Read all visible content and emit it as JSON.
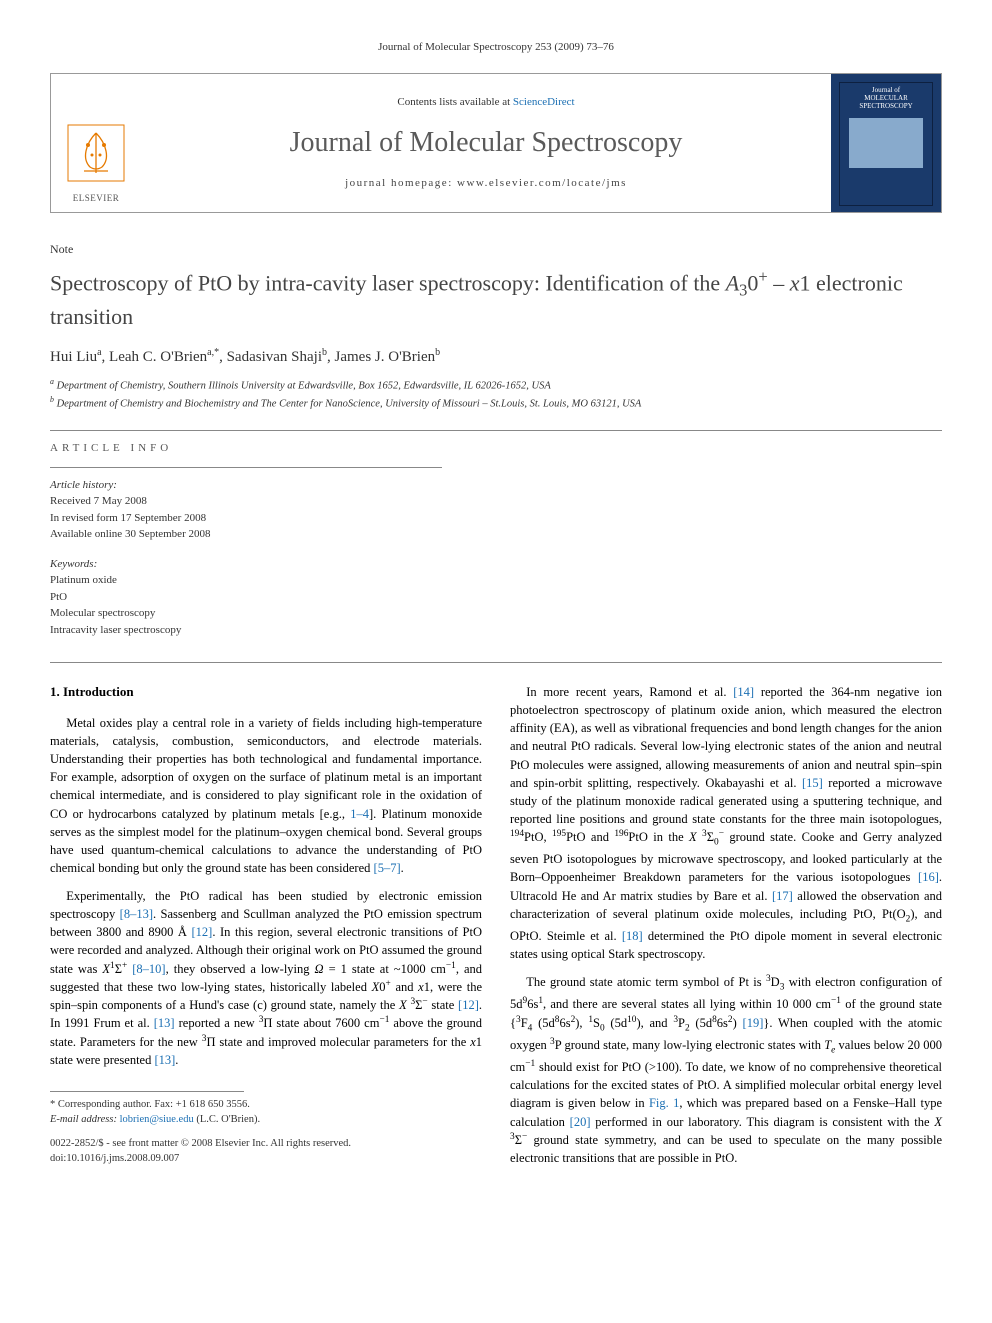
{
  "page_header": "Journal of Molecular Spectroscopy 253 (2009) 73–76",
  "banner": {
    "contents_prefix": "Contents lists available at ",
    "contents_link": "ScienceDirect",
    "journal_name": "Journal of Molecular Spectroscopy",
    "home_prefix": "journal homepage: ",
    "home_url": "www.elsevier.com/locate/jms",
    "publisher": "ELSEVIER",
    "cover_line1": "Journal of",
    "cover_line2": "MOLECULAR",
    "cover_line3": "SPECTROSCOPY"
  },
  "note_label": "Note",
  "title_html": "Spectroscopy of PtO by intra-cavity laser spectroscopy: Identification of the <i>A</i><sub>3</sub>0<sup>+</sup> – <i>x</i>1 electronic transition",
  "authors_html": "Hui Liu<sup>a</sup>, Leah C. O'Brien<sup>a,*</sup>, Sadasivan Shaji<sup>b</sup>, James J. O'Brien<sup>b</sup>",
  "affiliations": {
    "a": "Department of Chemistry, Southern Illinois University at Edwardsville, Box 1652, Edwardsville, IL 62026-1652, USA",
    "b": "Department of Chemistry and Biochemistry and The Center for NanoScience, University of Missouri – St.Louis, St. Louis, MO 63121, USA"
  },
  "article_info": {
    "heading": "article info",
    "history_label": "Article history:",
    "history": [
      "Received 7 May 2008",
      "In revised form 17 September 2008",
      "Available online 30 September 2008"
    ],
    "keywords_label": "Keywords:",
    "keywords": [
      "Platinum oxide",
      "PtO",
      "Molecular spectroscopy",
      "Intracavity laser spectroscopy"
    ]
  },
  "section1_heading": "1. Introduction",
  "left_col_paras": [
    "Metal oxides play a central role in a variety of fields including high-temperature materials, catalysis, combustion, semiconductors, and electrode materials. Understanding their properties has both technological and fundamental importance. For example, adsorption of oxygen on the surface of platinum metal is an important chemical intermediate, and is considered to play significant role in the oxidation of CO or hydrocarbons catalyzed by platinum metals [e.g., <span class=\"ref-link\">1–4</span>]. Platinum monoxide serves as the simplest model for the platinum–oxygen chemical bond. Several groups have used quantum-chemical calculations to advance the understanding of PtO chemical bonding but only the ground state has been considered <span class=\"ref-link\">[5–7]</span>.",
    "Experimentally, the PtO radical has been studied by electronic emission spectroscopy <span class=\"ref-link\">[8–13]</span>. Sassenberg and Scullman analyzed the PtO emission spectrum between 3800 and 8900 Å <span class=\"ref-link\">[12]</span>. In this region, several electronic transitions of PtO were recorded and analyzed. Although their original work on PtO assumed the ground state was <i>X</i><sup>1</sup>Σ<sup>+</sup> <span class=\"ref-link\">[8–10]</span>, they observed a low-lying <i>Ω</i> = 1 state at ~1000 cm<sup>−1</sup>, and suggested that these two low-lying states, historically labeled <i>X</i>0<sup>+</sup> and <i>x</i>1, were the spin–spin components of a Hund's case (c) ground state, namely the <i>X</i> <sup>3</sup>Σ<sup>−</sup> state <span class=\"ref-link\">[12]</span>. In 1991 Frum et al. <span class=\"ref-link\">[13]</span> reported a new <sup>3</sup>Π state about 7600 cm<sup>−1</sup> above the ground state. Parameters for the new <sup>3</sup>Π state and improved molecular parameters for the <i>x</i>1 state were presented <span class=\"ref-link\">[13]</span>."
  ],
  "right_col_paras": [
    "In more recent years, Ramond et al. <span class=\"ref-link\">[14]</span> reported the 364-nm negative ion photoelectron spectroscopy of platinum oxide anion, which measured the electron affinity (EA), as well as vibrational frequencies and bond length changes for the anion and neutral PtO radicals. Several low-lying electronic states of the anion and neutral PtO molecules were assigned, allowing measurements of anion and neutral spin–spin and spin-orbit splitting, respectively. Okabayashi et al. <span class=\"ref-link\">[15]</span> reported a microwave study of the platinum monoxide radical generated using a sputtering technique, and reported line positions and ground state constants for the three main isotopologues, <sup>194</sup>PtO, <sup>195</sup>PtO and <sup>196</sup>PtO in the <i>X</i> <sup>3</sup>Σ<sub>0</sub><sup>−</sup> ground state. Cooke and Gerry analyzed seven PtO isotopologues by microwave spectroscopy, and looked particularly at the Born–Oppoenheimer Breakdown parameters for the various isotopologues <span class=\"ref-link\">[16]</span>. Ultracold He and Ar matrix studies by Bare et al. <span class=\"ref-link\">[17]</span> allowed the observation and characterization of several platinum oxide molecules, including PtO, Pt(O<sub>2</sub>), and OPtO. Steimle et al. <span class=\"ref-link\">[18]</span> determined the PtO dipole moment in several electronic states using optical Stark spectroscopy.",
    "The ground state atomic term symbol of Pt is <sup>3</sup>D<sub>3</sub> with electron configuration of 5d<sup>9</sup>6s<sup>1</sup>, and there are several states all lying within 10 000 cm<sup>−1</sup> of the ground state {<sup>3</sup>F<sub>4</sub> (5d<sup>8</sup>6s<sup>2</sup>), <sup>1</sup>S<sub>0</sub> (5d<sup>10</sup>), and <sup>3</sup>P<sub>2</sub> (5d<sup>8</sup>6s<sup>2</sup>) <span class=\"ref-link\">[19]</span>}. When coupled with the atomic oxygen <sup>3</sup>P ground state, many low-lying electronic states with <i>T<sub>e</sub></i> values below 20 000 cm<sup>−1</sup> should exist for PtO (>100). To date, we know of no comprehensive theoretical calculations for the excited states of PtO. A simplified molecular orbital energy level diagram is given below in <span class=\"ref-link\">Fig. 1</span>, which was prepared based on a Fenske–Hall type calculation <span class=\"ref-link\">[20]</span> performed in our laboratory. This diagram is consistent with the <i>X</i> <sup>3</sup>Σ<sup>−</sup> ground state symmetry, and can be used to speculate on the many possible electronic transitions that are possible in PtO."
  ],
  "footnote": {
    "corr": "* Corresponding author. Fax: +1 618 650 3556.",
    "email_label": "E-mail address:",
    "email": "lobrien@siue.edu",
    "email_who": "(L.C. O'Brien)."
  },
  "copyright": {
    "line1": "0022-2852/$ - see front matter © 2008 Elsevier Inc. All rights reserved.",
    "line2": "doi:10.1016/j.jms.2008.09.007"
  }
}
